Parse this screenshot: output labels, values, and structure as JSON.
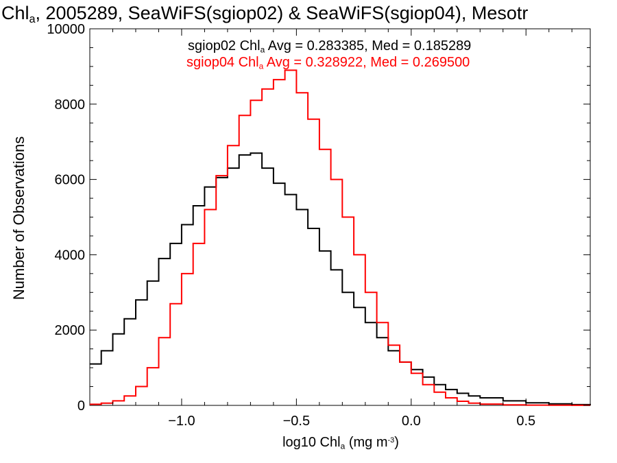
{
  "chart_data": {
    "type": "line",
    "title": {
      "part1": "Chl",
      "sub": "a",
      "part2": ", 2005289, SeaWiFS(sgiop02) & SeaWiFS(sgiop04), Mesotr"
    },
    "xlabel": {
      "pre": "log10 Chl",
      "sub": "a",
      "mid": " (mg m",
      "sup": "-3",
      "post": ")"
    },
    "ylabel": "Number of Observations",
    "xlim": [
      -1.4,
      0.78
    ],
    "ylim": [
      0,
      10000
    ],
    "xticks": [
      -1.0,
      -0.5,
      0.0,
      0.5
    ],
    "xtick_labels": [
      "−1.0",
      "−0.5",
      "0.0",
      "0.5"
    ],
    "yticks": [
      0,
      2000,
      4000,
      6000,
      8000,
      10000
    ],
    "ytick_labels": [
      "0",
      "2000",
      "4000",
      "6000",
      "8000",
      "10000"
    ],
    "legend": [
      {
        "name": "sgiop02",
        "color": "#000000",
        "pre": "sgiop02 Chl",
        "sub": "a",
        "post": " Avg = 0.283385, Med = 0.185289"
      },
      {
        "name": "sgiop04",
        "color": "#ff0000",
        "pre": "sgiop04 Chl",
        "sub": "a",
        "post": " Avg = 0.328922, Med = 0.269500"
      }
    ],
    "series": [
      {
        "name": "sgiop02",
        "color": "#000000",
        "x": [
          -1.4,
          -1.35,
          -1.3,
          -1.25,
          -1.2,
          -1.15,
          -1.1,
          -1.05,
          -1.0,
          -0.95,
          -0.9,
          -0.85,
          -0.8,
          -0.75,
          -0.7,
          -0.65,
          -0.6,
          -0.55,
          -0.5,
          -0.45,
          -0.4,
          -0.35,
          -0.3,
          -0.25,
          -0.2,
          -0.15,
          -0.1,
          -0.05,
          0.0,
          0.05,
          0.1,
          0.15,
          0.2,
          0.25,
          0.3,
          0.4,
          0.5,
          0.6,
          0.7,
          0.78
        ],
        "values": [
          1100,
          1450,
          1900,
          2300,
          2800,
          3300,
          3900,
          4300,
          4800,
          5300,
          5800,
          6050,
          6300,
          6650,
          6700,
          6300,
          5900,
          5600,
          5200,
          4700,
          4100,
          3600,
          3000,
          2600,
          2200,
          1800,
          1450,
          1150,
          950,
          750,
          550,
          420,
          320,
          250,
          200,
          120,
          70,
          40,
          20,
          10
        ]
      },
      {
        "name": "sgiop04",
        "color": "#ff0000",
        "x": [
          -1.4,
          -1.35,
          -1.3,
          -1.25,
          -1.2,
          -1.15,
          -1.1,
          -1.05,
          -1.0,
          -0.95,
          -0.9,
          -0.85,
          -0.8,
          -0.75,
          -0.7,
          -0.65,
          -0.6,
          -0.55,
          -0.5,
          -0.45,
          -0.4,
          -0.35,
          -0.3,
          -0.25,
          -0.2,
          -0.15,
          -0.1,
          -0.05,
          0.0,
          0.05,
          0.1,
          0.15,
          0.2,
          0.25,
          0.3,
          0.4,
          0.5,
          0.6,
          0.7,
          0.78
        ],
        "values": [
          30,
          60,
          120,
          250,
          500,
          1000,
          1800,
          2700,
          3500,
          4300,
          5200,
          6100,
          6900,
          7700,
          8100,
          8400,
          8650,
          8900,
          8300,
          7600,
          6800,
          6000,
          5000,
          4000,
          3000,
          2200,
          1600,
          1150,
          850,
          550,
          350,
          200,
          110,
          60,
          35,
          15,
          8,
          4,
          2,
          1
        ]
      }
    ]
  }
}
